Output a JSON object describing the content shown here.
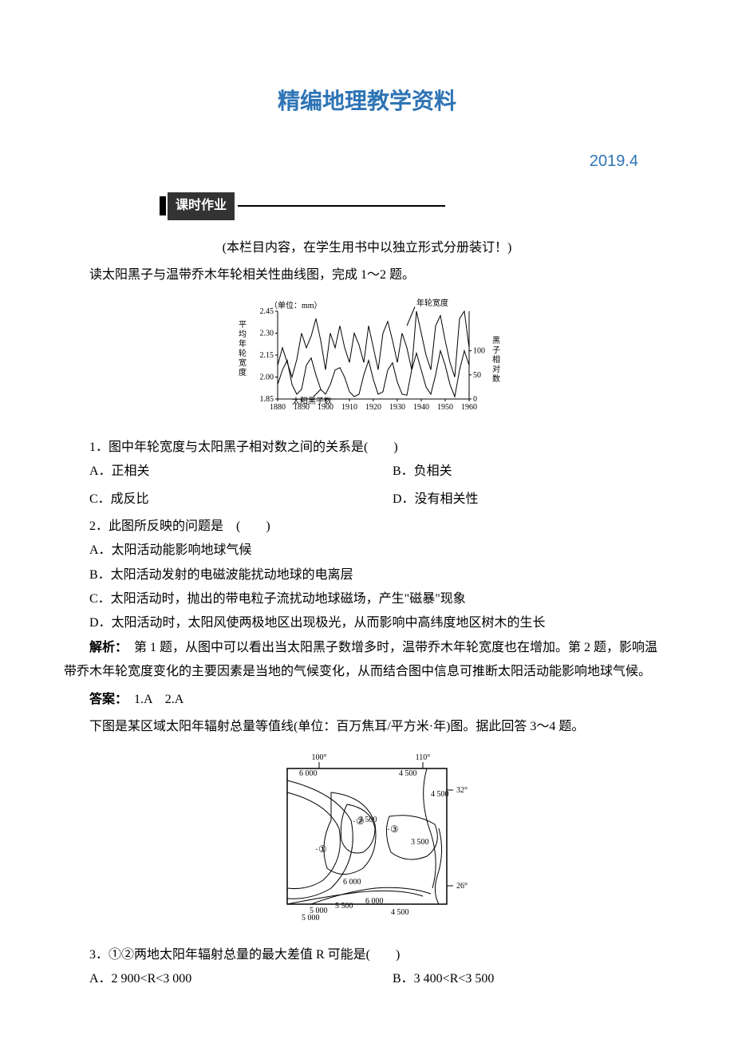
{
  "header": {
    "title": "精编地理教学资料",
    "date": "2019.4",
    "section_label": "课时作业"
  },
  "intro1": "(本栏目内容，在学生用书中以独立形式分册装订！)",
  "intro2": "读太阳黑子与温带乔木年轮相关性曲线图，完成 1～2 题。",
  "chart1": {
    "unit_label": "（单位：mm）",
    "y_left_label": "平均年轮宽度",
    "y_left_ticks": [
      "2.45",
      "2.30",
      "2.15",
      "2.00",
      "1.85"
    ],
    "y_right_label": "黑子相对数",
    "y_right_ticks": [
      "100",
      "50",
      "0"
    ],
    "x_ticks": [
      "1880",
      "1890",
      "1900",
      "1910",
      "1920",
      "1930",
      "1940",
      "1950",
      "1960"
    ],
    "series_ring_label": "年轮宽度",
    "series_sun_label": "太阳黑子数",
    "ring_color": "#000000",
    "sun_color": "#000000",
    "bg": "#ffffff",
    "font_size": 10,
    "ring_series": [
      [
        1880,
        2.08
      ],
      [
        1882,
        2.2
      ],
      [
        1884,
        2.1
      ],
      [
        1886,
        2.0
      ],
      [
        1888,
        2.12
      ],
      [
        1890,
        2.3
      ],
      [
        1892,
        2.2
      ],
      [
        1894,
        2.28
      ],
      [
        1896,
        2.4
      ],
      [
        1898,
        2.25
      ],
      [
        1900,
        2.05
      ],
      [
        1902,
        2.3
      ],
      [
        1904,
        2.2
      ],
      [
        1906,
        2.35
      ],
      [
        1908,
        2.2
      ],
      [
        1910,
        2.1
      ],
      [
        1912,
        2.3
      ],
      [
        1914,
        2.22
      ],
      [
        1916,
        2.1
      ],
      [
        1918,
        2.35
      ],
      [
        1920,
        2.2
      ],
      [
        1922,
        2.05
      ],
      [
        1924,
        2.3
      ],
      [
        1926,
        2.38
      ],
      [
        1928,
        2.25
      ],
      [
        1930,
        2.1
      ],
      [
        1932,
        2.3
      ],
      [
        1934,
        2.2
      ],
      [
        1936,
        2.05
      ],
      [
        1938,
        2.45
      ],
      [
        1940,
        2.3
      ],
      [
        1942,
        2.15
      ],
      [
        1944,
        2.05
      ],
      [
        1946,
        2.35
      ],
      [
        1948,
        2.42
      ],
      [
        1950,
        2.25
      ],
      [
        1952,
        2.1
      ],
      [
        1954,
        2.0
      ],
      [
        1956,
        2.4
      ],
      [
        1958,
        2.45
      ],
      [
        1960,
        2.2
      ]
    ],
    "sun_series": [
      [
        1880,
        30
      ],
      [
        1882,
        60
      ],
      [
        1884,
        80
      ],
      [
        1886,
        30
      ],
      [
        1888,
        10
      ],
      [
        1890,
        20
      ],
      [
        1892,
        70
      ],
      [
        1894,
        85
      ],
      [
        1896,
        50
      ],
      [
        1898,
        20
      ],
      [
        1900,
        10
      ],
      [
        1902,
        30
      ],
      [
        1904,
        60
      ],
      [
        1906,
        65
      ],
      [
        1908,
        45
      ],
      [
        1910,
        15
      ],
      [
        1912,
        5
      ],
      [
        1914,
        10
      ],
      [
        1916,
        50
      ],
      [
        1918,
        80
      ],
      [
        1920,
        40
      ],
      [
        1922,
        10
      ],
      [
        1924,
        15
      ],
      [
        1926,
        60
      ],
      [
        1928,
        75
      ],
      [
        1930,
        35
      ],
      [
        1932,
        10
      ],
      [
        1934,
        8
      ],
      [
        1936,
        60
      ],
      [
        1938,
        95
      ],
      [
        1940,
        60
      ],
      [
        1942,
        25
      ],
      [
        1944,
        10
      ],
      [
        1946,
        50
      ],
      [
        1948,
        100
      ],
      [
        1950,
        70
      ],
      [
        1952,
        30
      ],
      [
        1954,
        5
      ],
      [
        1956,
        60
      ],
      [
        1958,
        100
      ],
      [
        1960,
        70
      ]
    ],
    "xlim": [
      1880,
      1960
    ],
    "ylim_left": [
      1.85,
      2.45
    ],
    "ylim_right": [
      0,
      100
    ]
  },
  "q1": {
    "stem": "1．图中年轮宽度与太阳黑子相对数之间的关系是(　　)",
    "A": "A．正相关",
    "B": "B．负相关",
    "C": "C．成反比",
    "D": "D．没有相关性"
  },
  "q2": {
    "stem": "2．此图所反映的问题是　(　　)",
    "A": "A．太阳活动能影响地球气候",
    "B": "B．太阳活动发射的电磁波能扰动地球的电离层",
    "C": "C．太阳活动时，抛出的带电粒子流扰动地球磁场，产生\"磁暴\"现象",
    "D": "D．太阳活动时，太阳风使两极地区出现极光，从而影响中高纬度地区树木的生长"
  },
  "analysis1_label": "解析：",
  "analysis1": "　第 1 题，从图中可以看出当太阳黑子数增多时，温带乔木年轮宽度也在增加。第 2 题，影响温带乔木年轮宽度变化的主要因素是当地的气候变化，从而结合图中信息可推断太阳活动能影响地球气候。",
  "answer1_label": "答案：",
  "answer1": "　1.A　2.A",
  "intro3": "下图是某区域太阳年辐射总量等值线(单位：百万焦耳/平方米·年)图。据此回答 3～4 题。",
  "chart2": {
    "lon_labels": [
      "100°",
      "110°"
    ],
    "lat_labels": [
      "32°",
      "26°"
    ],
    "contour_values": [
      "6 000",
      "6 000",
      "4 500",
      "4 500",
      "3 500",
      "3 500",
      "5 000",
      "5 500",
      "6 000",
      "5 000",
      "4 500"
    ],
    "points": [
      "①",
      "②",
      "③"
    ],
    "border_color": "#000000",
    "bg": "#ffffff",
    "font_size": 10
  },
  "q3": {
    "stem": "3．①②两地太阳年辐射总量的最大差值 R 可能是(　　)",
    "A": "A．2 900<R<3 000",
    "B": "B．3 400<R<3 500"
  }
}
